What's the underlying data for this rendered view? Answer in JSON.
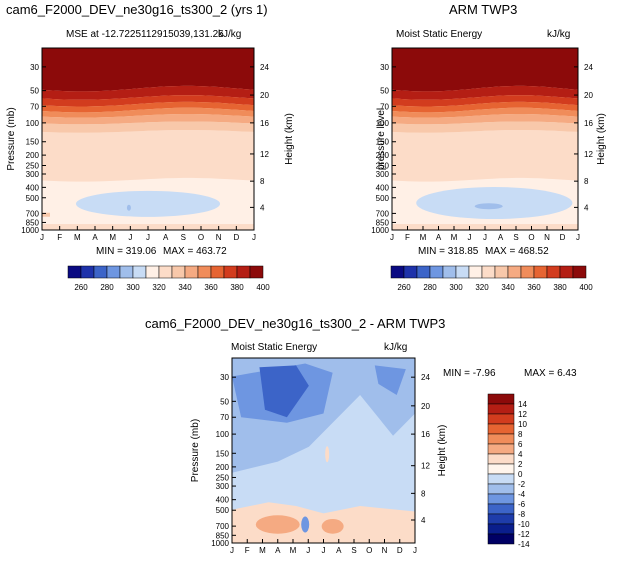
{
  "chart_data": [
    {
      "type": "heatmap",
      "title": "cam6_F2000_DEV_ne30g16_ts300_2 (yrs 1)",
      "subtitle_left": "MSE at -12.7225112915039,131.25",
      "subtitle_right": "kJ/kg",
      "xlabel": "",
      "ylabel": "Pressure (mb)",
      "ylabel_right": "Height (km)",
      "x_ticks": [
        "J",
        "F",
        "M",
        "A",
        "M",
        "J",
        "J",
        "A",
        "S",
        "O",
        "N",
        "D",
        "J"
      ],
      "y_ticks": [
        "30",
        "50",
        "70",
        "100",
        "150",
        "200",
        "250",
        "300",
        "400",
        "500",
        "700",
        "850",
        "1000"
      ],
      "y_ticks_right": [
        "24",
        "20",
        "16",
        "12",
        "8",
        "4"
      ],
      "ylim": [
        1000,
        20
      ],
      "min_label": "MIN = 319.06",
      "max_label": "MAX = 463.72",
      "colorbar_ticks": [
        "260",
        "280",
        "300",
        "320",
        "340",
        "360",
        "380",
        "400"
      ]
    },
    {
      "type": "heatmap",
      "title": "ARM TWP3",
      "subtitle_left": "Moist Static Energy",
      "subtitle_right": "kJ/kg",
      "xlabel": "",
      "ylabel": "pressure level",
      "ylabel_right": "Height (km)",
      "x_ticks": [
        "J",
        "F",
        "M",
        "A",
        "M",
        "J",
        "J",
        "A",
        "S",
        "O",
        "N",
        "D",
        "J"
      ],
      "y_ticks": [
        "30",
        "50",
        "70",
        "100",
        "150",
        "200",
        "250",
        "300",
        "400",
        "500",
        "700",
        "850",
        "1000"
      ],
      "y_ticks_right": [
        "24",
        "20",
        "16",
        "12",
        "8",
        "4"
      ],
      "ylim": [
        1000,
        20
      ],
      "min_label": "MIN = 318.85",
      "max_label": "MAX = 468.52",
      "colorbar_ticks": [
        "260",
        "280",
        "300",
        "320",
        "340",
        "360",
        "380",
        "400"
      ]
    },
    {
      "type": "heatmap",
      "title": "cam6_F2000_DEV_ne30g16_ts300_2 - ARM TWP3",
      "subtitle_left": "Moist Static Energy",
      "subtitle_right": "kJ/kg",
      "xlabel": "",
      "ylabel": "Pressure (mb)",
      "ylabel_right": "Height (km)",
      "x_ticks": [
        "J",
        "F",
        "M",
        "A",
        "M",
        "J",
        "J",
        "A",
        "S",
        "O",
        "N",
        "D",
        "J"
      ],
      "y_ticks": [
        "30",
        "50",
        "70",
        "100",
        "150",
        "200",
        "250",
        "300",
        "400",
        "500",
        "700",
        "850",
        "1000"
      ],
      "y_ticks_right": [
        "24",
        "20",
        "16",
        "12",
        "8",
        "4"
      ],
      "ylim": [
        1000,
        20
      ],
      "min_label": "MIN =   -7.96",
      "max_label": "MAX =    6.43",
      "colorbar_ticks": [
        "14",
        "12",
        "10",
        "8",
        "6",
        "4",
        "2",
        "0",
        "-2",
        "-4",
        "-6",
        "-8",
        "-10",
        "-12",
        "-14"
      ]
    }
  ],
  "colors": {
    "abs_scale": [
      "#0a0a82",
      "#1e32aa",
      "#3c64c8",
      "#6e96e1",
      "#a0beeb",
      "#c8dcf5",
      "#fff0e6",
      "#fcdcc8",
      "#f8c8aa",
      "#f5aa82",
      "#f08c5a",
      "#e66432",
      "#d23c1e",
      "#b41e14",
      "#8c0a0a"
    ],
    "diff_scale": [
      "#8c0a0a",
      "#b41e14",
      "#d23c1e",
      "#e66432",
      "#f08c5a",
      "#f5aa82",
      "#fcdcc8",
      "#fff5ec",
      "#c8dcf5",
      "#a0beeb",
      "#6e96e1",
      "#3c64c8",
      "#1e3caa",
      "#0a1e8c",
      "#000064"
    ]
  }
}
